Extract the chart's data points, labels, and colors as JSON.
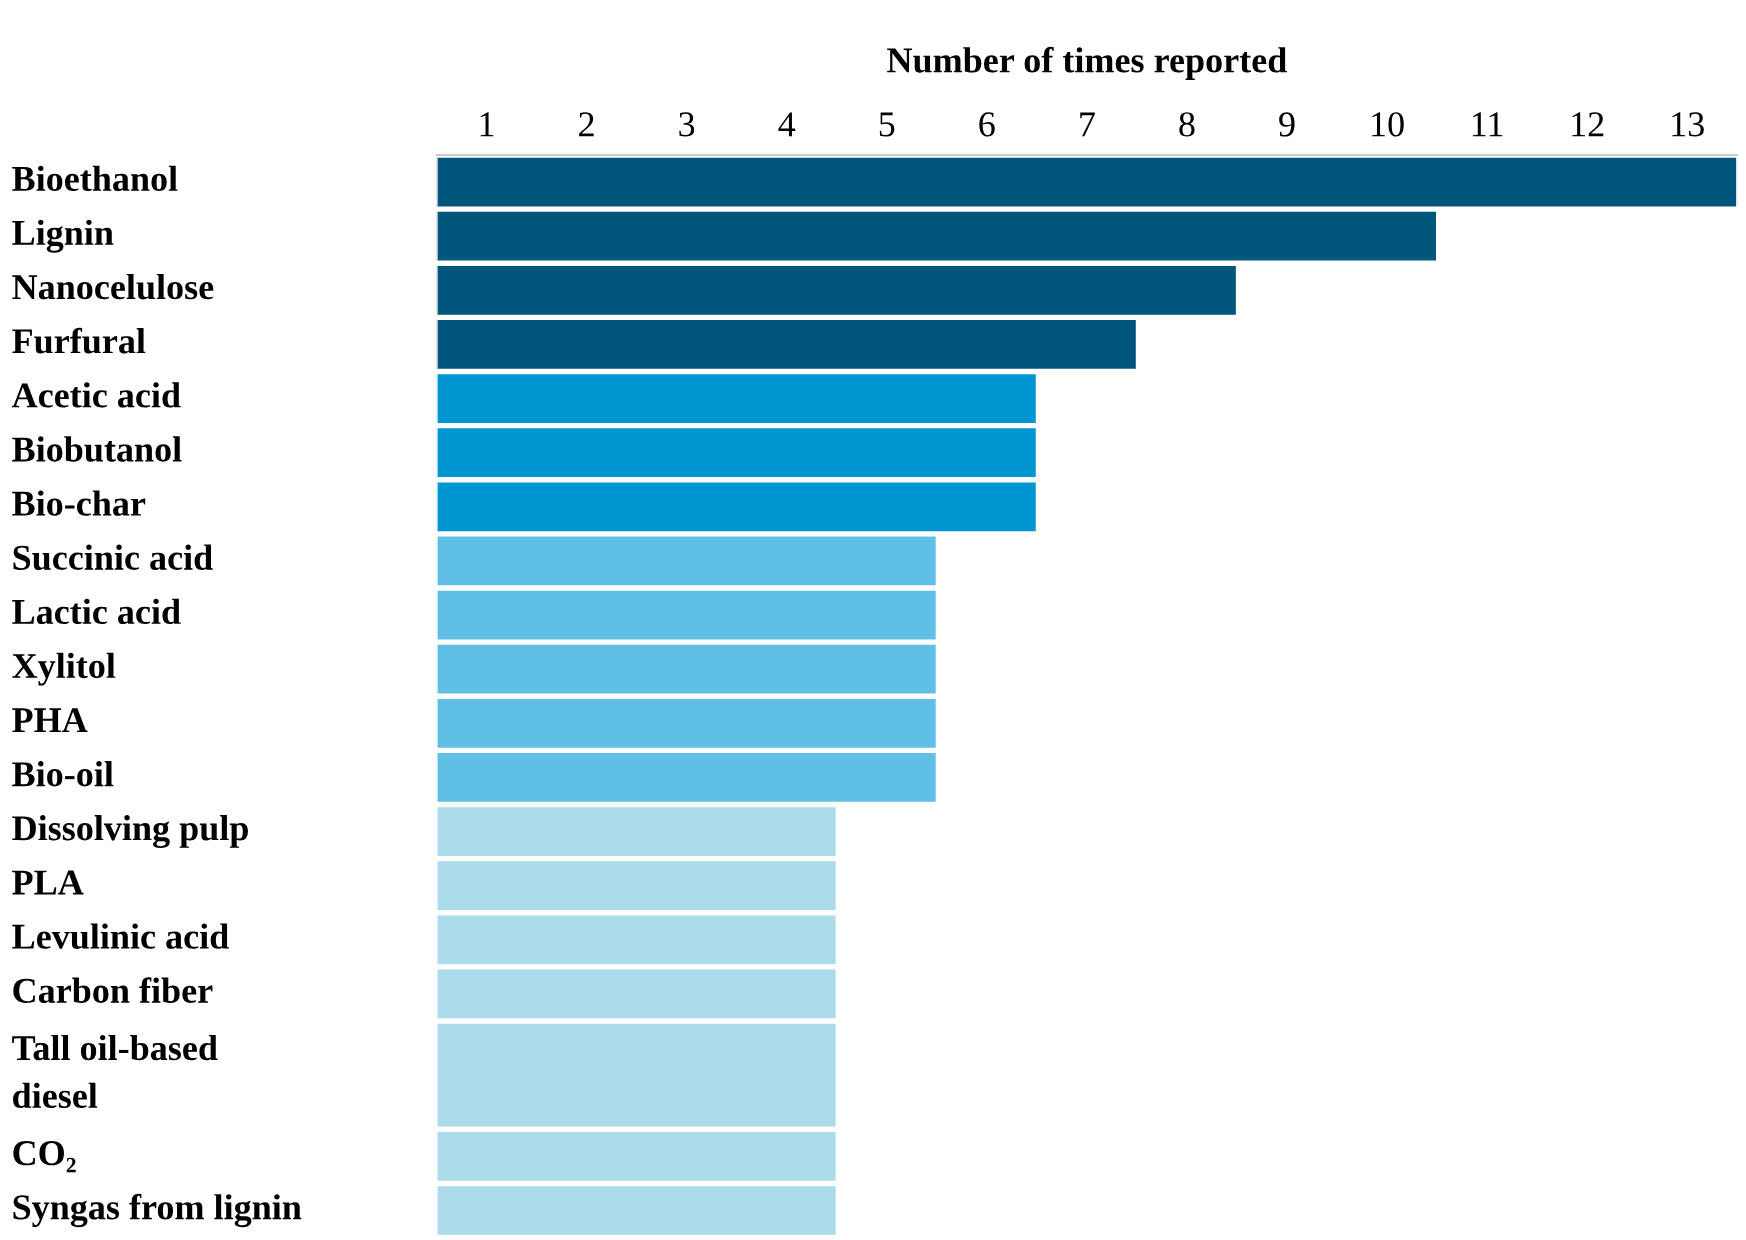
{
  "chart_data": {
    "type": "bar",
    "orientation": "horizontal",
    "xlabel": "Number of times reported",
    "categories": [
      "Bioethanol",
      "Lignin",
      "Nanocelulose",
      "Furfural",
      "Acetic acid",
      "Biobutanol",
      "Bio-char",
      "Succinic acid",
      "Lactic acid",
      "Xylitol",
      "PHA",
      "Bio-oil",
      "Dissolving pulp",
      "PLA",
      "Levulinic acid",
      "Carbon fiber",
      "Tall oil-based\ndiesel",
      "CO₂",
      "Syngas from lignin"
    ],
    "values": [
      13,
      10,
      8,
      7,
      6,
      6,
      6,
      5,
      5,
      5,
      5,
      5,
      4,
      4,
      4,
      4,
      4,
      4,
      4
    ],
    "colors": [
      "#00557a",
      "#00557a",
      "#00557a",
      "#00557a",
      "#0096d2",
      "#0096d2",
      "#0096d2",
      "#5fbfe4",
      "#5fbfe4",
      "#5fbfe4",
      "#5fbfe4",
      "#5fbfe4",
      "#acdbea",
      "#acdbea",
      "#acdbea",
      "#acdbea",
      "#acdbea",
      "#acdbea",
      "#acdbea"
    ],
    "xlim": [
      0,
      13
    ],
    "xticks": [
      {
        "value": 0.5,
        "label": "1"
      },
      {
        "value": 1.5,
        "label": "2"
      },
      {
        "value": 2.5,
        "label": "3"
      },
      {
        "value": 3.5,
        "label": "4"
      },
      {
        "value": 4.5,
        "label": "5"
      },
      {
        "value": 5.5,
        "label": "6"
      },
      {
        "value": 6.5,
        "label": "7"
      },
      {
        "value": 7.5,
        "label": "8"
      },
      {
        "value": 8.5,
        "label": "9"
      },
      {
        "value": 9.5,
        "label": "10"
      },
      {
        "value": 10.5,
        "label": "11"
      },
      {
        "value": 11.5,
        "label": "12"
      },
      {
        "value": 12.5,
        "label": "13"
      }
    ],
    "tick_labels": "x",
    "grid": false,
    "legend": false
  }
}
